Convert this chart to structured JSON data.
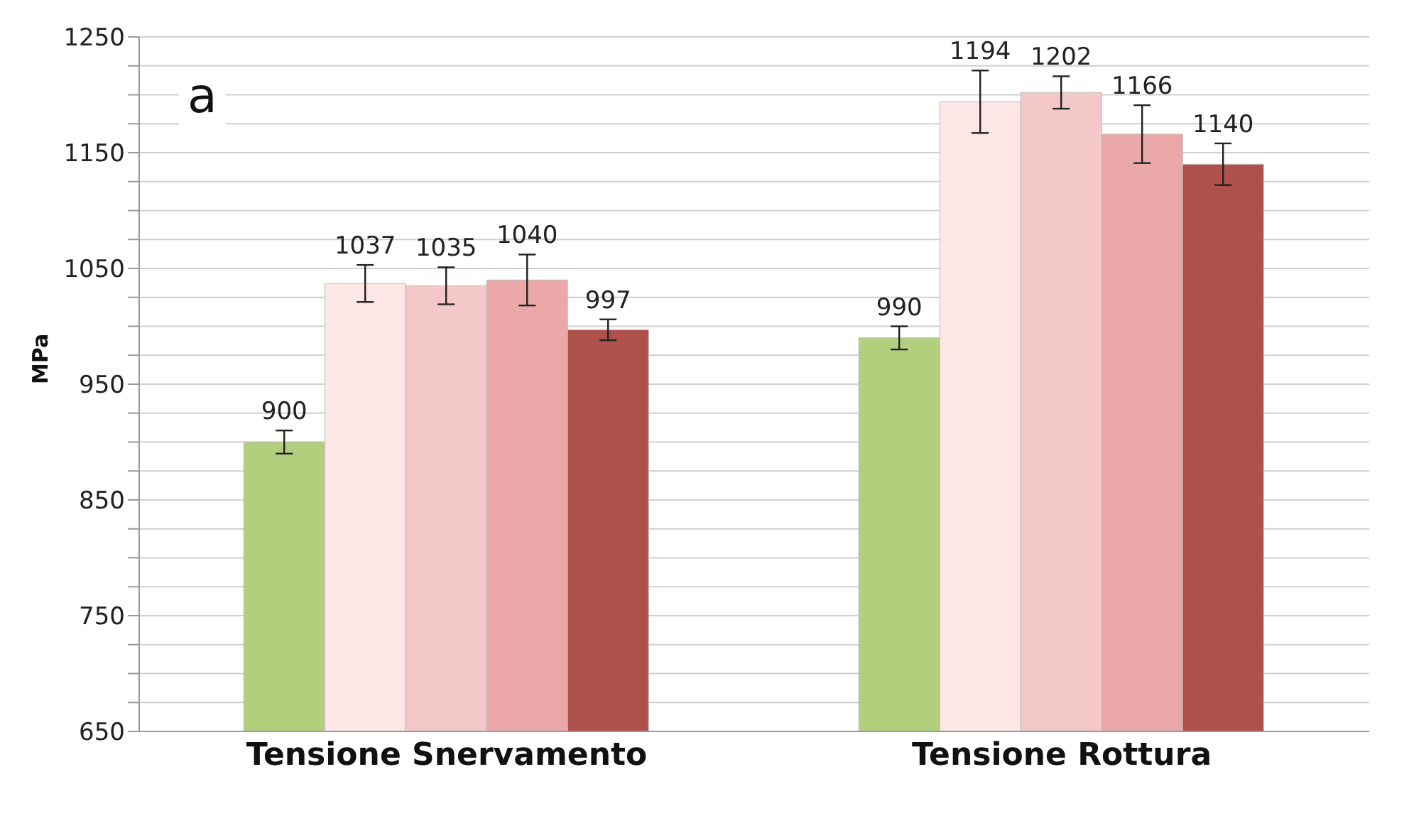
{
  "chart_data": {
    "type": "bar",
    "ylabel": "MPa",
    "annotations": [
      "a"
    ],
    "categories": [
      "Tensione Snervamento",
      "Tensione Rottura"
    ],
    "series": [
      {
        "color": "#b3cf7e",
        "values": [
          900,
          990
        ],
        "errors": [
          10,
          10
        ]
      },
      {
        "color": "#fce6e6",
        "values": [
          1037,
          1194
        ],
        "errors": [
          16,
          27
        ]
      },
      {
        "color": "#f4c8c8",
        "values": [
          1035,
          1202
        ],
        "errors": [
          16,
          14
        ]
      },
      {
        "color": "#eaa9a8",
        "values": [
          1040,
          1166
        ],
        "errors": [
          22,
          25
        ]
      },
      {
        "color": "#b0504b",
        "values": [
          997,
          1140
        ],
        "errors": [
          9,
          18
        ]
      }
    ],
    "ylim": [
      650,
      1250
    ],
    "yticks": [
      650,
      {
        "value": 675,
        "label": null
      },
      {
        "value": 700,
        "label": null
      },
      {
        "value": 725,
        "label": null
      },
      750,
      {
        "value": 775,
        "label": null
      },
      {
        "value": 800,
        "label": null
      },
      {
        "value": 825,
        "label": null
      },
      850,
      {
        "value": 875,
        "label": null
      },
      {
        "value": 900,
        "label": null
      },
      {
        "value": 925,
        "label": null
      },
      950,
      {
        "value": 975,
        "label": null
      },
      {
        "value": 1000,
        "label": null
      },
      {
        "value": 1025,
        "label": null
      },
      1050,
      {
        "value": 1075,
        "label": null
      },
      {
        "value": 1100,
        "label": null
      },
      {
        "value": 1125,
        "label": null
      },
      1150,
      {
        "value": 1175,
        "label": null
      },
      {
        "value": 1200,
        "label": null
      },
      {
        "value": 1225,
        "label": null
      },
      1250
    ],
    "grid": "y",
    "data_labels": true
  }
}
